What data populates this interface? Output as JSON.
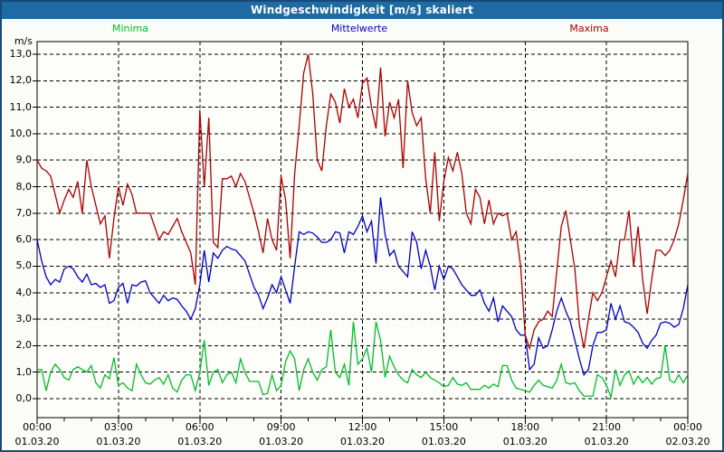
{
  "window": {
    "title": "Windgeschwindigkeit [m/s] skaliert"
  },
  "legend": {
    "minima": "Minima",
    "mittelwerte": "Mittelwerte",
    "maxima": "Maxima"
  },
  "colors": {
    "titlebar_bg": "#1E6AA2",
    "window_border": "#17497A",
    "plot_bg": "#FDFDFA",
    "grid": "#000000",
    "minima": "#00BE28",
    "mittelwerte": "#0000C8",
    "maxima": "#AA0000"
  },
  "chart_data": {
    "type": "line",
    "title": "Windgeschwindigkeit [m/s] skaliert",
    "ylabel": "m/s",
    "ylim": [
      0,
      13
    ],
    "ytick_step": 1,
    "ytick_labels": [
      "0,0",
      "1,0",
      "2,0",
      "3,0",
      "4,0",
      "5,0",
      "6,0",
      "7,0",
      "8,0",
      "9,0",
      "10,0",
      "11,0",
      "12,0",
      "13,0"
    ],
    "x_range_hours": [
      0,
      24
    ],
    "x_major_tick_hours": [
      0,
      3,
      6,
      9,
      12,
      15,
      18,
      21,
      24
    ],
    "x_minor_tick_interval_hours": 1,
    "x_tick_times": [
      "00:00",
      "03:00",
      "06:00",
      "09:00",
      "12:00",
      "15:00",
      "18:00",
      "21:00",
      "00:00"
    ],
    "x_tick_dates": [
      "01.03.20",
      "01.03.20",
      "01.03.20",
      "01.03.20",
      "01.03.20",
      "01.03.20",
      "01.03.20",
      "01.03.20",
      "02.03.20"
    ],
    "sample_interval_minutes": 10,
    "grid": "dashed",
    "legend_position": "top",
    "series": [
      {
        "name": "Minima",
        "color": "#00BE28",
        "values": [
          1.1,
          1.1,
          0.3,
          1.0,
          1.3,
          1.1,
          0.8,
          0.7,
          1.1,
          1.2,
          1.1,
          1.0,
          1.25,
          0.6,
          0.4,
          0.9,
          0.75,
          1.55,
          0.5,
          0.6,
          0.4,
          0.3,
          1.3,
          0.9,
          0.6,
          0.55,
          0.7,
          0.8,
          0.55,
          0.9,
          0.4,
          0.25,
          0.7,
          0.9,
          0.9,
          0.3,
          1.0,
          2.2,
          0.5,
          1.0,
          1.1,
          0.6,
          0.9,
          1.0,
          0.6,
          1.5,
          1.0,
          0.65,
          0.65,
          0.65,
          0.15,
          0.2,
          0.9,
          0.3,
          0.5,
          1.4,
          1.8,
          1.5,
          0.3,
          1.1,
          1.5,
          1.0,
          0.7,
          1.1,
          1.2,
          2.6,
          1.0,
          0.8,
          1.3,
          0.5,
          2.9,
          1.3,
          1.5,
          1.9,
          1.0,
          2.9,
          2.2,
          0.8,
          1.6,
          1.2,
          0.9,
          0.7,
          0.6,
          1.1,
          0.9,
          0.8,
          1.0,
          0.8,
          0.7,
          0.6,
          0.45,
          0.5,
          0.8,
          0.55,
          0.5,
          0.6,
          0.35,
          0.35,
          0.35,
          0.5,
          0.4,
          0.55,
          0.45,
          1.25,
          1.25,
          0.7,
          0.4,
          0.35,
          0.3,
          0.25,
          0.5,
          0.7,
          0.5,
          0.45,
          0.4,
          0.7,
          1.3,
          0.6,
          0.55,
          0.6,
          0.3,
          0.1,
          0.1,
          0.1,
          0.9,
          0.8,
          0.5,
          0.05,
          1.1,
          0.5,
          0.9,
          1.05,
          0.55,
          0.85,
          0.6,
          0.8,
          0.55,
          0.75,
          0.8,
          2.0,
          0.7,
          0.6,
          0.9,
          0.6,
          0.9
        ]
      },
      {
        "name": "Mittelwerte",
        "color": "#0000C8",
        "values": [
          6.0,
          5.2,
          4.6,
          4.3,
          4.5,
          4.4,
          4.9,
          5.0,
          4.9,
          4.6,
          4.4,
          4.7,
          4.3,
          4.35,
          4.2,
          4.3,
          3.6,
          3.7,
          4.2,
          4.35,
          3.6,
          4.3,
          4.25,
          4.4,
          4.45,
          4.0,
          3.8,
          3.6,
          3.9,
          3.7,
          3.8,
          3.75,
          3.5,
          3.3,
          3.0,
          3.4,
          4.3,
          5.6,
          4.4,
          5.5,
          5.3,
          5.6,
          5.75,
          5.65,
          5.6,
          5.4,
          5.2,
          4.7,
          4.2,
          3.9,
          3.4,
          3.8,
          4.3,
          4.0,
          4.6,
          4.1,
          3.6,
          5.0,
          6.3,
          6.2,
          6.3,
          6.25,
          6.1,
          5.9,
          5.9,
          6.0,
          6.3,
          6.25,
          5.5,
          6.3,
          6.2,
          6.5,
          6.9,
          6.3,
          6.7,
          5.1,
          7.6,
          6.2,
          5.4,
          5.6,
          5.0,
          4.8,
          4.6,
          6.3,
          5.9,
          4.9,
          5.6,
          5.0,
          4.1,
          5.0,
          4.5,
          5.0,
          4.9,
          4.6,
          4.3,
          4.1,
          3.9,
          3.9,
          4.1,
          3.6,
          3.3,
          3.8,
          2.9,
          3.5,
          3.3,
          3.1,
          2.6,
          2.4,
          2.4,
          1.1,
          1.3,
          2.3,
          1.9,
          2.0,
          2.6,
          3.3,
          3.8,
          3.3,
          2.9,
          2.2,
          1.5,
          0.9,
          1.1,
          2.0,
          2.5,
          2.5,
          2.6,
          3.6,
          3.0,
          3.5,
          2.9,
          2.85,
          2.7,
          2.5,
          2.1,
          1.9,
          2.2,
          2.4,
          2.85,
          2.9,
          2.85,
          2.7,
          2.8,
          3.4,
          4.3
        ]
      },
      {
        "name": "Maxima",
        "color": "#AA0000",
        "values": [
          9.0,
          8.7,
          8.6,
          8.4,
          7.7,
          7.0,
          7.5,
          7.9,
          7.6,
          8.2,
          7.0,
          9.0,
          8.0,
          7.3,
          6.6,
          6.9,
          5.3,
          6.8,
          8.0,
          7.3,
          8.1,
          7.7,
          7.0,
          7.0,
          7.0,
          7.0,
          6.5,
          6.0,
          6.3,
          6.2,
          6.5,
          6.8,
          6.3,
          5.9,
          5.5,
          4.3,
          10.9,
          8.0,
          10.6,
          5.9,
          5.7,
          8.3,
          8.3,
          8.4,
          8.0,
          8.5,
          8.2,
          7.6,
          7.0,
          6.3,
          5.5,
          6.8,
          6.0,
          5.6,
          8.4,
          7.5,
          5.3,
          8.5,
          10.3,
          12.3,
          13.0,
          11.5,
          9.0,
          8.6,
          10.3,
          11.5,
          11.2,
          10.4,
          11.7,
          11.0,
          11.3,
          10.6,
          11.9,
          12.1,
          11.0,
          10.2,
          12.5,
          9.9,
          11.2,
          10.6,
          11.3,
          8.7,
          12.0,
          10.8,
          10.3,
          10.6,
          8.3,
          7.0,
          9.3,
          6.7,
          8.2,
          9.1,
          8.6,
          9.3,
          8.5,
          7.0,
          6.6,
          7.9,
          7.6,
          6.6,
          7.5,
          6.6,
          7.0,
          6.9,
          7.0,
          6.0,
          6.3,
          5.0,
          2.4,
          1.9,
          2.6,
          2.9,
          3.0,
          3.3,
          3.1,
          4.8,
          6.5,
          7.1,
          6.0,
          4.9,
          2.8,
          1.9,
          3.0,
          4.0,
          3.7,
          4.0,
          4.6,
          5.2,
          4.6,
          6.0,
          6.0,
          7.1,
          5.0,
          6.5,
          4.5,
          3.2,
          4.5,
          5.6,
          5.6,
          5.4,
          5.6,
          6.0,
          6.6,
          7.5,
          8.5
        ]
      }
    ]
  }
}
